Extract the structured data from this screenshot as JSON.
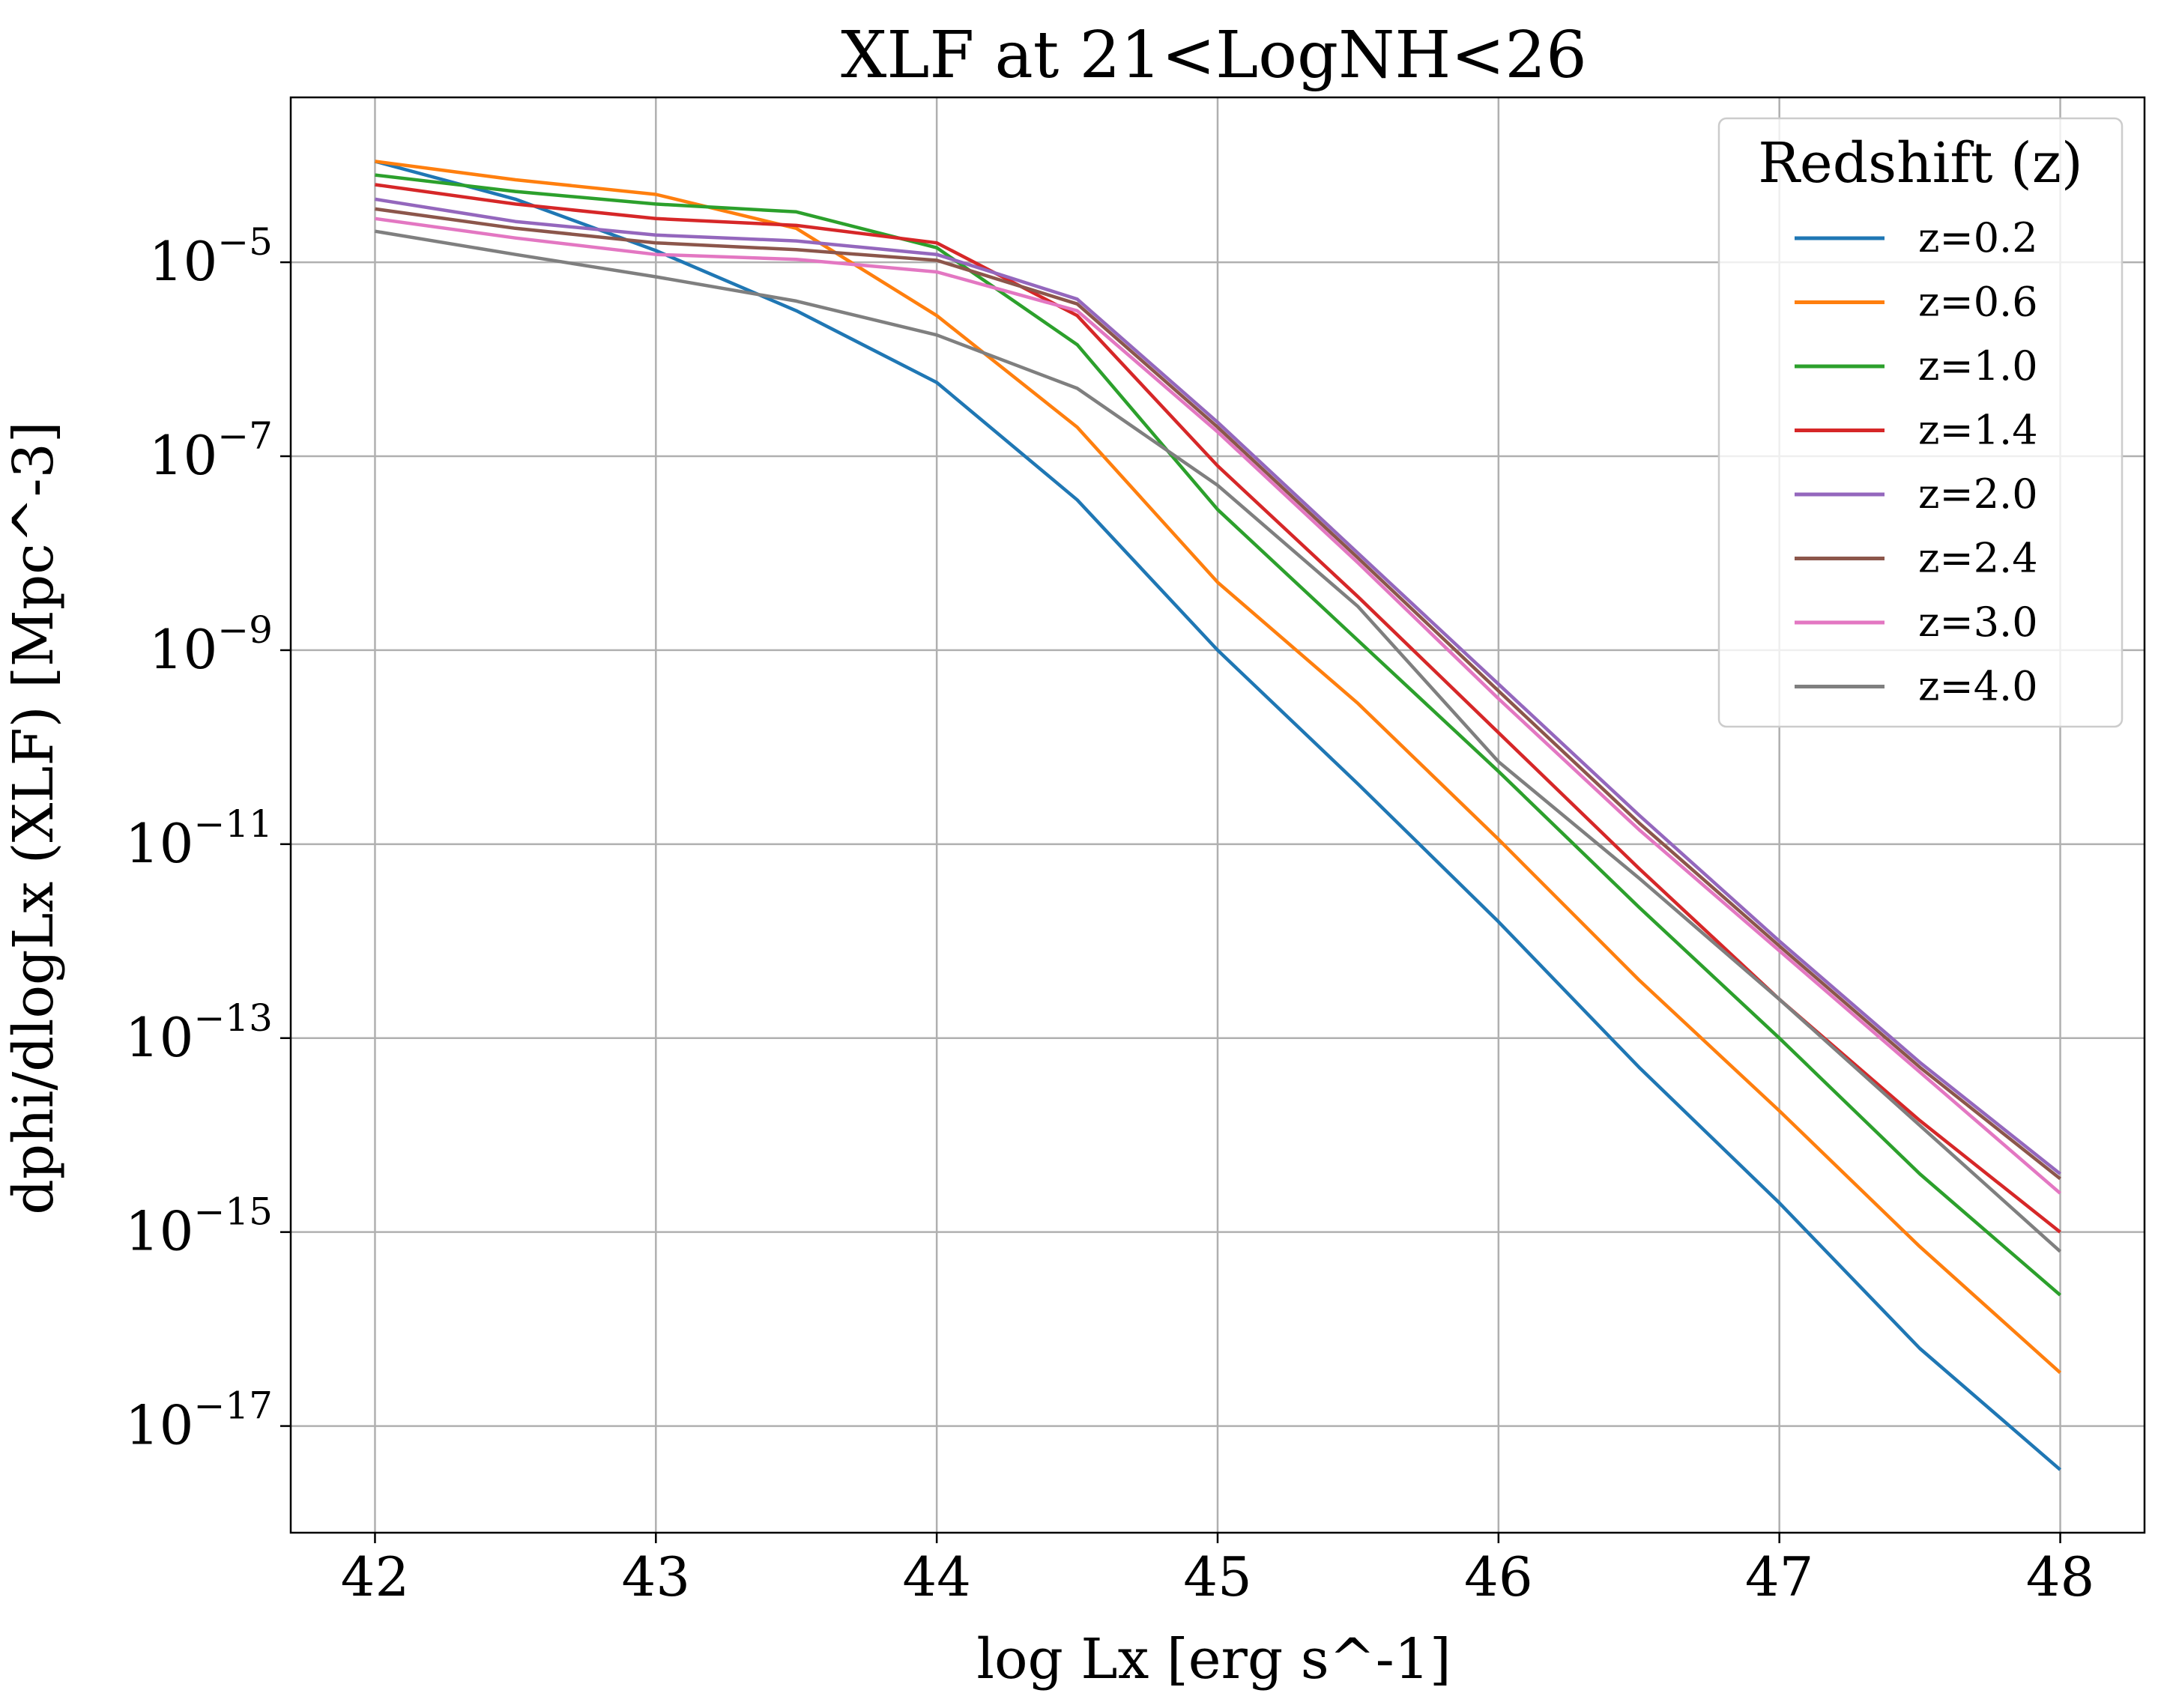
{
  "chart_data": {
    "type": "line",
    "title": "XLF at 21<LogNH<26",
    "xlabel": "log Lx [erg s^-1]",
    "ylabel": "dphi/dlogLx (XLF) [Mpc^-3]",
    "xlim": [
      41.7,
      48.3
    ],
    "ylim_log10": [
      -18.1,
      -3.3
    ],
    "yscale": "log",
    "grid": true,
    "xticks": [
      "42",
      "43",
      "44",
      "45",
      "46",
      "47",
      "48"
    ],
    "xtick_values": [
      42,
      43,
      44,
      45,
      46,
      47,
      48
    ],
    "ytick_exponents": [
      -17,
      -15,
      -13,
      -11,
      -9,
      -7,
      -5
    ],
    "ytick_base": "10",
    "ytick_labels": [
      "−17",
      "−15",
      "−13",
      "−11",
      "−9",
      "−7",
      "−5"
    ],
    "legend": {
      "title": "Redshift (z)",
      "placement": "upper right",
      "entries": [
        "z=0.2",
        "z=0.6",
        "z=1.0",
        "z=1.4",
        "z=2.0",
        "z=2.4",
        "z=3.0",
        "z=4.0"
      ]
    },
    "x": [
      42,
      42.5,
      43,
      43.5,
      44,
      44.5,
      45,
      45.5,
      46,
      46.5,
      47,
      47.5,
      48
    ],
    "series_note_units": "values are log10(dphi/dlogLx)",
    "series": [
      {
        "name": "z=0.2",
        "color": "#1f77b4",
        "log10_values": [
          -3.96,
          -4.35,
          -4.88,
          -5.5,
          -6.24,
          -7.45,
          -9.0,
          -10.38,
          -11.8,
          -13.3,
          -14.7,
          -16.2,
          -17.45
        ]
      },
      {
        "name": "z=0.6",
        "color": "#ff7f0e",
        "log10_values": [
          -3.96,
          -4.15,
          -4.3,
          -4.65,
          -5.55,
          -6.7,
          -8.3,
          -9.55,
          -10.95,
          -12.4,
          -13.75,
          -15.15,
          -16.45
        ]
      },
      {
        "name": "z=1.0",
        "color": "#2ca02c",
        "log10_values": [
          -4.1,
          -4.27,
          -4.4,
          -4.48,
          -4.85,
          -5.85,
          -7.55,
          -8.9,
          -10.25,
          -11.65,
          -13.0,
          -14.4,
          -15.65
        ]
      },
      {
        "name": "z=1.4",
        "color": "#d62728",
        "log10_values": [
          -4.2,
          -4.4,
          -4.55,
          -4.62,
          -4.8,
          -5.55,
          -7.1,
          -8.45,
          -9.85,
          -11.25,
          -12.6,
          -13.85,
          -15.0
        ]
      },
      {
        "name": "z=2.0",
        "color": "#9467bd",
        "log10_values": [
          -4.35,
          -4.58,
          -4.72,
          -4.78,
          -4.92,
          -5.38,
          -6.65,
          -8.0,
          -9.35,
          -10.7,
          -12.0,
          -13.25,
          -14.4
        ]
      },
      {
        "name": "z=2.4",
        "color": "#8c564b",
        "log10_values": [
          -4.45,
          -4.65,
          -4.8,
          -4.87,
          -4.98,
          -5.43,
          -6.7,
          -8.05,
          -9.42,
          -10.78,
          -12.05,
          -13.3,
          -14.45
        ]
      },
      {
        "name": "z=3.0",
        "color": "#e377c2",
        "log10_values": [
          -4.55,
          -4.75,
          -4.92,
          -4.97,
          -5.1,
          -5.5,
          -6.75,
          -8.1,
          -9.5,
          -10.85,
          -12.1,
          -13.35,
          -14.6
        ]
      },
      {
        "name": "z=4.0",
        "color": "#7f7f7f",
        "log10_values": [
          -4.68,
          -4.92,
          -5.15,
          -5.4,
          -5.75,
          -6.3,
          -7.3,
          -8.55,
          -10.15,
          -11.35,
          -12.6,
          -13.9,
          -15.2
        ]
      }
    ]
  }
}
